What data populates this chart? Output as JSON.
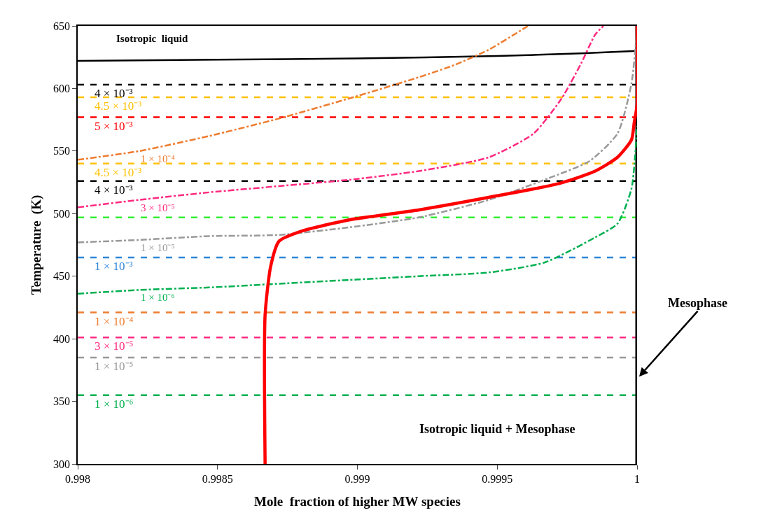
{
  "chart_data": {
    "type": "line",
    "xlabel": "Mole  fraction of higher MW species",
    "ylabel": "Temperature  (K)",
    "xlim": [
      0.998,
      1
    ],
    "xticks": [
      0.998,
      0.9985,
      0.999,
      0.9995,
      1
    ],
    "ylim": [
      300,
      650
    ],
    "yticks": [
      300,
      350,
      400,
      450,
      500,
      550,
      600,
      650
    ],
    "legend": false,
    "marker": "none",
    "series": [
      {
        "color": "#000000",
        "line_style": "solid",
        "x": [
          0.998,
          0.9985,
          0.999,
          0.9995,
          0.9998,
          1
        ],
        "values": [
          622,
          623,
          624,
          626,
          628,
          630
        ]
      },
      {
        "name": "1 × 10⁻⁴",
        "color": "#ed7d31",
        "line_style": "dashdot",
        "x": [
          0.998,
          0.99822,
          0.99847,
          0.99872,
          0.99897,
          0.99922,
          0.99935,
          0.99947,
          0.99961
        ],
        "values": [
          543,
          550,
          562,
          576,
          592,
          609,
          619,
          631,
          650
        ]
      },
      {
        "name": "3 × 10⁻⁵",
        "color": "#ff2a80",
        "line_style": "dashdot",
        "x": [
          0.998,
          0.99822,
          0.99847,
          0.99872,
          0.99897,
          0.99922,
          0.99947,
          0.99963,
          0.99973,
          0.9998,
          0.99985,
          0.99988
        ],
        "values": [
          505,
          511,
          517,
          522,
          527,
          534,
          545,
          564,
          592,
          620,
          643,
          650
        ]
      },
      {
        "name": "1 × 10⁻⁵",
        "color": "#999999",
        "line_style": "dashdot",
        "x": [
          0.998,
          0.99822,
          0.99847,
          0.99872,
          0.99897,
          0.99922,
          0.99947,
          0.99968,
          0.99983,
          0.99993,
          0.99998,
          1
        ],
        "values": [
          477,
          479,
          482,
          483,
          489,
          497,
          511,
          528,
          542,
          564,
          604,
          648
        ]
      },
      {
        "name": "1 × 10⁻⁶",
        "color": "#00b050",
        "line_style": "dashdot",
        "x": [
          0.998,
          0.99822,
          0.99847,
          0.99872,
          0.99897,
          0.99922,
          0.99947,
          0.99967,
          0.99985,
          0.99993,
          0.99998,
          1
        ],
        "values": [
          436,
          439,
          441,
          444,
          447,
          450,
          453,
          461,
          481,
          492,
          520,
          570
        ]
      },
      {
        "color": "#ff0000",
        "line_style": "solid",
        "x": [
          0.99867,
          0.99867,
          0.99869,
          0.99872,
          0.9988,
          0.99897,
          0.99922,
          0.99947,
          0.99972,
          0.99985,
          0.99993,
          0.99998,
          0.99999,
          1,
          1
        ],
        "values": [
          300,
          419,
          458,
          478,
          486,
          495,
          503,
          513,
          524,
          534,
          545,
          559,
          573,
          587,
          650
        ]
      }
    ],
    "ref_lines": [
      {
        "axis": "y",
        "value": 603,
        "label": "4 × 10⁻³",
        "color": "#000000",
        "line_style": "dashed"
      },
      {
        "axis": "y",
        "value": 593,
        "label": "4.5 × 10⁻³",
        "color": "#ffc000",
        "line_style": "dashed"
      },
      {
        "axis": "y",
        "value": 577,
        "label": "5 × 10⁻³",
        "color": "#ff0000",
        "line_style": "dashed"
      },
      {
        "axis": "y",
        "value": 540,
        "label": "4.5 × 10⁻³",
        "color": "#ffc000",
        "line_style": "dashed"
      },
      {
        "axis": "y",
        "value": 526,
        "label": "4 × 10⁻³",
        "color": "#000000",
        "line_style": "dashed"
      },
      {
        "axis": "y",
        "value": 497,
        "color": "#33ee33",
        "line_style": "dashed"
      },
      {
        "axis": "y",
        "value": 465,
        "label": "1 × 10⁻³",
        "color": "#2e86d6",
        "line_style": "dashed"
      },
      {
        "axis": "y",
        "value": 421,
        "label": "1 × 10⁻⁴",
        "color": "#ed7d31",
        "line_style": "dashed"
      },
      {
        "axis": "y",
        "value": 401,
        "label": "3 × 10⁻⁵",
        "color": "#ff2a80",
        "line_style": "dashed"
      },
      {
        "axis": "y",
        "value": 385,
        "label": "1 × 10⁻⁵",
        "color": "#999999",
        "line_style": "dashed"
      },
      {
        "axis": "y",
        "value": 355,
        "label": "1 × 10⁻⁶",
        "color": "#00b050",
        "line_style": "dashed"
      },
      {
        "axis": "x",
        "value": 1,
        "color": "#000000",
        "line_style": "solid"
      }
    ],
    "annotations": [
      "Isotropic  liquid",
      "Isotropic liquid + Mesophase",
      "Mesophase"
    ]
  }
}
